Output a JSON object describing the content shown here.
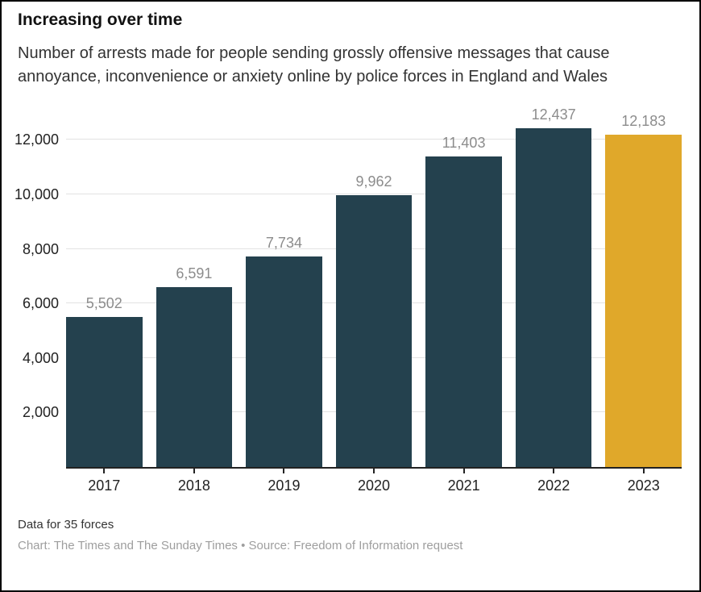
{
  "header": {
    "title": "Increasing over time",
    "subtitle": "Number of arrests made for people sending grossly offensive messages that cause annoyance, inconvenience or anxiety online by police forces in England and Wales"
  },
  "chart_data": {
    "type": "bar",
    "title": "Increasing over time",
    "subtitle": "Number of arrests made for people sending grossly offensive messages that cause annoyance, inconvenience or anxiety online by police forces in England and Wales",
    "categories": [
      "2017",
      "2018",
      "2019",
      "2020",
      "2021",
      "2022",
      "2023"
    ],
    "values": [
      5502,
      6591,
      7734,
      9962,
      11403,
      12437,
      12183
    ],
    "value_labels": [
      "5,502",
      "6,591",
      "7,734",
      "9,962",
      "11,403",
      "12,437",
      "12,183"
    ],
    "xlabel": "",
    "ylabel": "",
    "ylim": [
      0,
      13400
    ],
    "yticks": [
      {
        "value": 2000,
        "label": "2,000"
      },
      {
        "value": 4000,
        "label": "4,000"
      },
      {
        "value": 6000,
        "label": "6,000"
      },
      {
        "value": 8000,
        "label": "8,000"
      },
      {
        "value": 10000,
        "label": "10,000"
      },
      {
        "value": 12000,
        "label": "12,000"
      }
    ],
    "grid": "horizontal",
    "legend": "none",
    "bar_color": "#24414E",
    "highlight_color": "#E0A82A",
    "highlight_index": 6,
    "value_label_color": "#8C8C8C",
    "axis_color": "#222222",
    "grid_color": "#E2E2E2"
  },
  "footer": {
    "note": "Data for 35 forces",
    "credit": "Chart: The Times and The Sunday Times • Source: Freedom of Information request"
  }
}
